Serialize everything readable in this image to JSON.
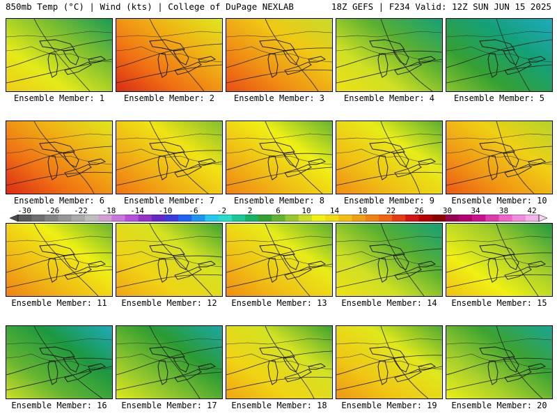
{
  "header": {
    "left": "850mb Temp (°C) | Wind (kts) | College of DuPage NEXLAB",
    "right": "18Z GEFS | F234 Valid: 12Z SUN JUN 15 2025"
  },
  "panels": [
    {
      "label": "Ensemble Member: 1",
      "warmth": 0.45
    },
    {
      "label": "Ensemble Member: 2",
      "warmth": 0.78
    },
    {
      "label": "Ensemble Member: 3",
      "warmth": 0.72
    },
    {
      "label": "Ensemble Member: 4",
      "warmth": 0.4
    },
    {
      "label": "Ensemble Member: 5",
      "warmth": 0.2
    },
    {
      "label": "Ensemble Member: 6",
      "warmth": 0.78
    },
    {
      "label": "Ensemble Member: 7",
      "warmth": 0.65
    },
    {
      "label": "Ensemble Member: 8",
      "warmth": 0.62
    },
    {
      "label": "Ensemble Member: 9",
      "warmth": 0.6
    },
    {
      "label": "Ensemble Member: 10",
      "warmth": 0.7
    },
    {
      "label": "Ensemble Member: 11",
      "warmth": 0.62
    },
    {
      "label": "Ensemble Member: 12",
      "warmth": 0.55
    },
    {
      "label": "Ensemble Member: 13",
      "warmth": 0.6
    },
    {
      "label": "Ensemble Member: 14",
      "warmth": 0.4
    },
    {
      "label": "Ensemble Member: 15",
      "warmth": 0.48
    },
    {
      "label": "Ensemble Member: 16",
      "warmth": 0.28
    },
    {
      "label": "Ensemble Member: 17",
      "warmth": 0.32
    },
    {
      "label": "Ensemble Member: 18",
      "warmth": 0.55
    },
    {
      "label": "Ensemble Member: 19",
      "warmth": 0.58
    },
    {
      "label": "Ensemble Member: 20",
      "warmth": 0.35
    }
  ],
  "colorbar": {
    "ticks": [
      "-30",
      "-26",
      "-22",
      "-18",
      "-14",
      "-10",
      "-6",
      "-2",
      "2",
      "6",
      "10",
      "14",
      "18",
      "22",
      "26",
      "30",
      "34",
      "38",
      "42"
    ],
    "colors": [
      "#5a5a5a",
      "#6e6e6e",
      "#828282",
      "#969696",
      "#aaaaaa",
      "#bebebe",
      "#d2a0d2",
      "#c878dc",
      "#b450dc",
      "#9632c8",
      "#6428c8",
      "#3c3cdc",
      "#1e64f0",
      "#1e96f0",
      "#28c8f0",
      "#28dcc8",
      "#1ec896",
      "#14b464",
      "#32a032",
      "#64b432",
      "#96c832",
      "#c8dc28",
      "#f0f014",
      "#f0dc14",
      "#f0be14",
      "#f0a014",
      "#f08214",
      "#f06414",
      "#e63c14",
      "#d21414",
      "#b40000",
      "#8c0000",
      "#960050",
      "#b4006e",
      "#c8148c",
      "#dc3caa",
      "#f064c8",
      "#f08cdc",
      "#f0b4e6"
    ]
  }
}
